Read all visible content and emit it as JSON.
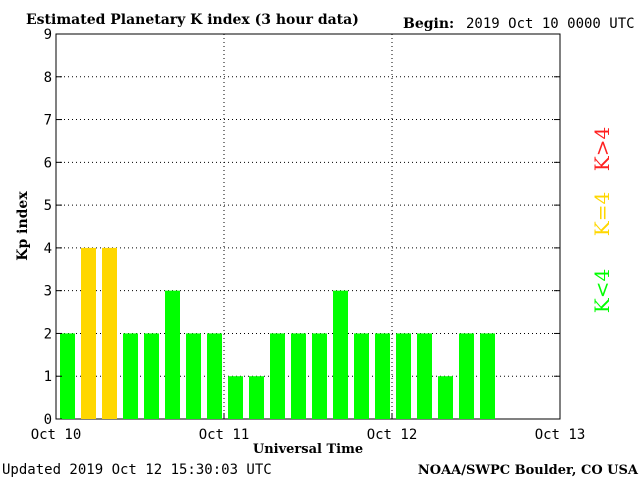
{
  "header": {
    "title": "Estimated Planetary K index (3 hour data)",
    "begin_label": "Begin:",
    "begin_value": "2019 Oct 10 0000 UTC"
  },
  "footer": {
    "updated": "Updated 2019 Oct 12 15:30:03 UTC",
    "source": "NOAA/SWPC Boulder, CO USA"
  },
  "legend": {
    "high": "K>4",
    "equal": "K=4",
    "low": "K<4"
  },
  "colors": {
    "low": "#00ff00",
    "equal": "#ffd700",
    "high": "#ff2020"
  },
  "chart_data": {
    "type": "bar",
    "title": "Estimated Planetary K index (3 hour data)",
    "xlabel": "Universal Time",
    "ylabel": "Kp index",
    "ylim": [
      0,
      9
    ],
    "yticks": [
      "0",
      "1",
      "2",
      "3",
      "4",
      "5",
      "6",
      "7",
      "8",
      "9"
    ],
    "xticks": [
      "Oct 10",
      "Oct 11",
      "Oct 12",
      "Oct 13"
    ],
    "grid": true,
    "values": [
      2,
      4,
      4,
      2,
      2,
      3,
      2,
      2,
      1,
      1,
      2,
      2,
      2,
      3,
      2,
      2,
      2,
      2,
      1,
      2,
      2
    ]
  }
}
